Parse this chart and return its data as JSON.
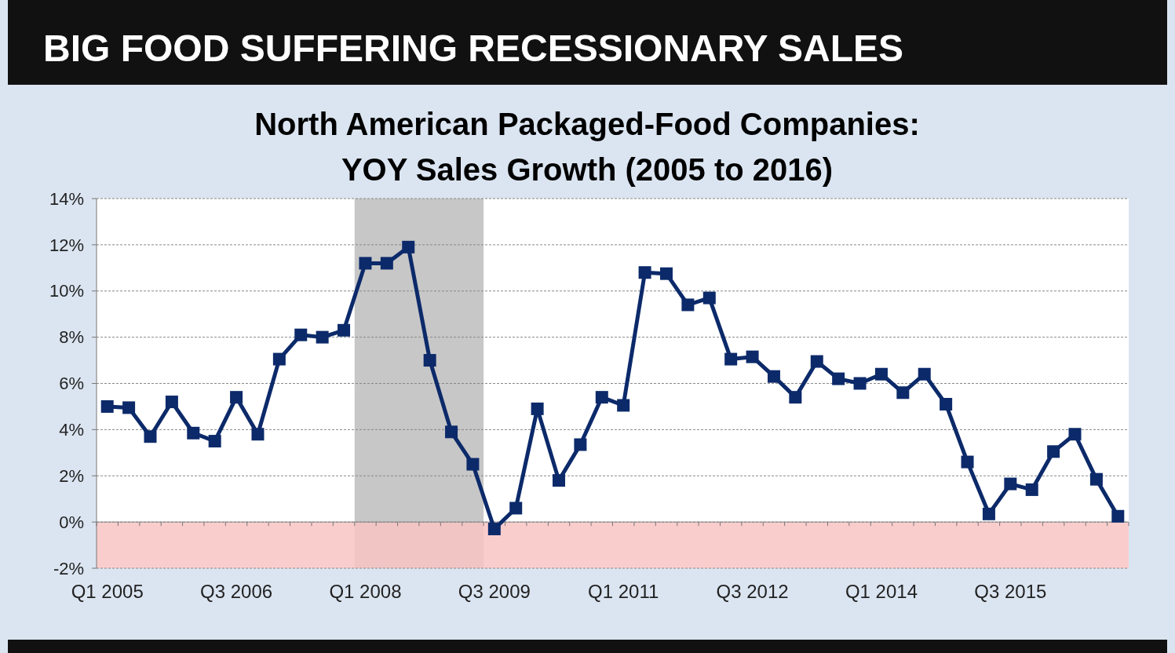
{
  "chart_data": {
    "type": "line",
    "title": "BIG FOOD SUFFERING RECESSIONARY SALES",
    "subtitle": "North American Packaged-Food Companies:\nYOY Sales Growth (2005 to 2016)",
    "categories": [
      "Q1 2005",
      null,
      null,
      null,
      null,
      null,
      "Q3 2006",
      null,
      null,
      null,
      null,
      null,
      "Q1 2008",
      null,
      null,
      null,
      null,
      null,
      "Q3 2009",
      null,
      null,
      null,
      null,
      null,
      "Q1 2011",
      null,
      null,
      null,
      null,
      null,
      "Q3 2012",
      null,
      null,
      null,
      null,
      null,
      "Q1 2014",
      null,
      null,
      null,
      null,
      null,
      "Q3 2015",
      null,
      null,
      null,
      null,
      null
    ],
    "series": [
      {
        "color": "#0c2a6a",
        "values": [
          5.0,
          4.95,
          3.7,
          5.2,
          3.85,
          3.5,
          5.4,
          3.8,
          7.05,
          8.1,
          8.0,
          8.3,
          11.2,
          11.2,
          11.9,
          7.0,
          3.9,
          2.5,
          -0.3,
          0.6,
          4.9,
          1.8,
          3.35,
          5.4,
          5.05,
          10.8,
          10.75,
          9.4,
          9.7,
          7.05,
          7.15,
          6.3,
          5.4,
          6.95,
          6.2,
          6.0,
          6.4,
          5.6,
          6.4,
          5.1,
          2.6,
          0.35,
          1.65,
          1.4,
          3.05,
          3.8,
          1.85,
          0.25
        ]
      }
    ],
    "ylim": [
      -2,
      14
    ],
    "yticks": [
      {
        "value": -2,
        "label": "-2%"
      },
      {
        "value": 0,
        "label": "0%"
      },
      {
        "value": 2,
        "label": "2%"
      },
      {
        "value": 4,
        "label": "4%"
      },
      {
        "value": 6,
        "label": "6%"
      },
      {
        "value": 8,
        "label": "8%"
      },
      {
        "value": 10,
        "label": "10%"
      },
      {
        "value": 12,
        "label": "12%"
      },
      {
        "value": 14,
        "label": "14%"
      }
    ],
    "bands": [
      {
        "axis": "y",
        "from": -2,
        "to": 0,
        "color": "#f9c4c4"
      }
    ],
    "grid": "y",
    "marker": "square",
    "line_style": "solid"
  }
}
